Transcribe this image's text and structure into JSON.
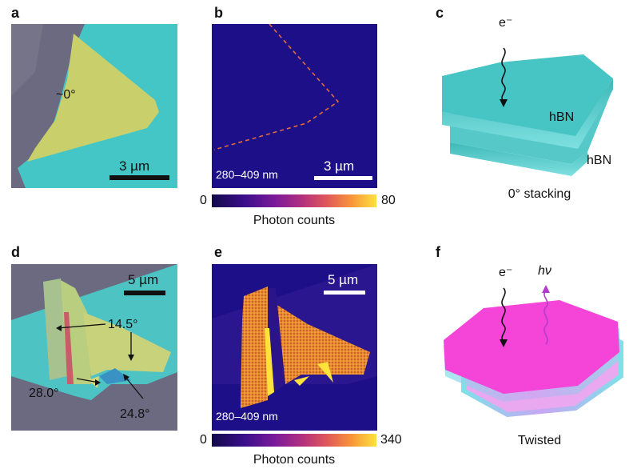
{
  "panels": {
    "a": {
      "label": "a",
      "angle": "~0°",
      "scale": "3 µm"
    },
    "b": {
      "label": "b",
      "range": "280–409 nm",
      "scale": "3 µm"
    },
    "c": {
      "label": "c",
      "electron": "e⁻",
      "layer_top": "hBN",
      "layer_bottom": "hBN",
      "caption": "0° stacking"
    },
    "d": {
      "label": "d",
      "scale": "5 µm",
      "angle1": "14.5°",
      "angle2": "28.0°",
      "angle3": "24.8°"
    },
    "e": {
      "label": "e",
      "range": "280–409 nm",
      "scale": "5 µm"
    },
    "f": {
      "label": "f",
      "electron": "e⁻",
      "photon": "hν",
      "caption": "Twisted"
    }
  },
  "colorbar_top": {
    "min": "0",
    "max": "80",
    "title": "Photon counts"
  },
  "colorbar_bottom": {
    "min": "0",
    "max": "340",
    "title": "Photon counts"
  },
  "colors": {
    "optical_bg": "#6b6a80",
    "hbn_cyan": "#45c6c6",
    "flake_yellow": "#c9cf6a",
    "map_bg": "#1c0f88",
    "emission_orange": "#f09a35",
    "emission_yellow": "#ffe23a",
    "twisted_magenta": "#f544d8"
  }
}
